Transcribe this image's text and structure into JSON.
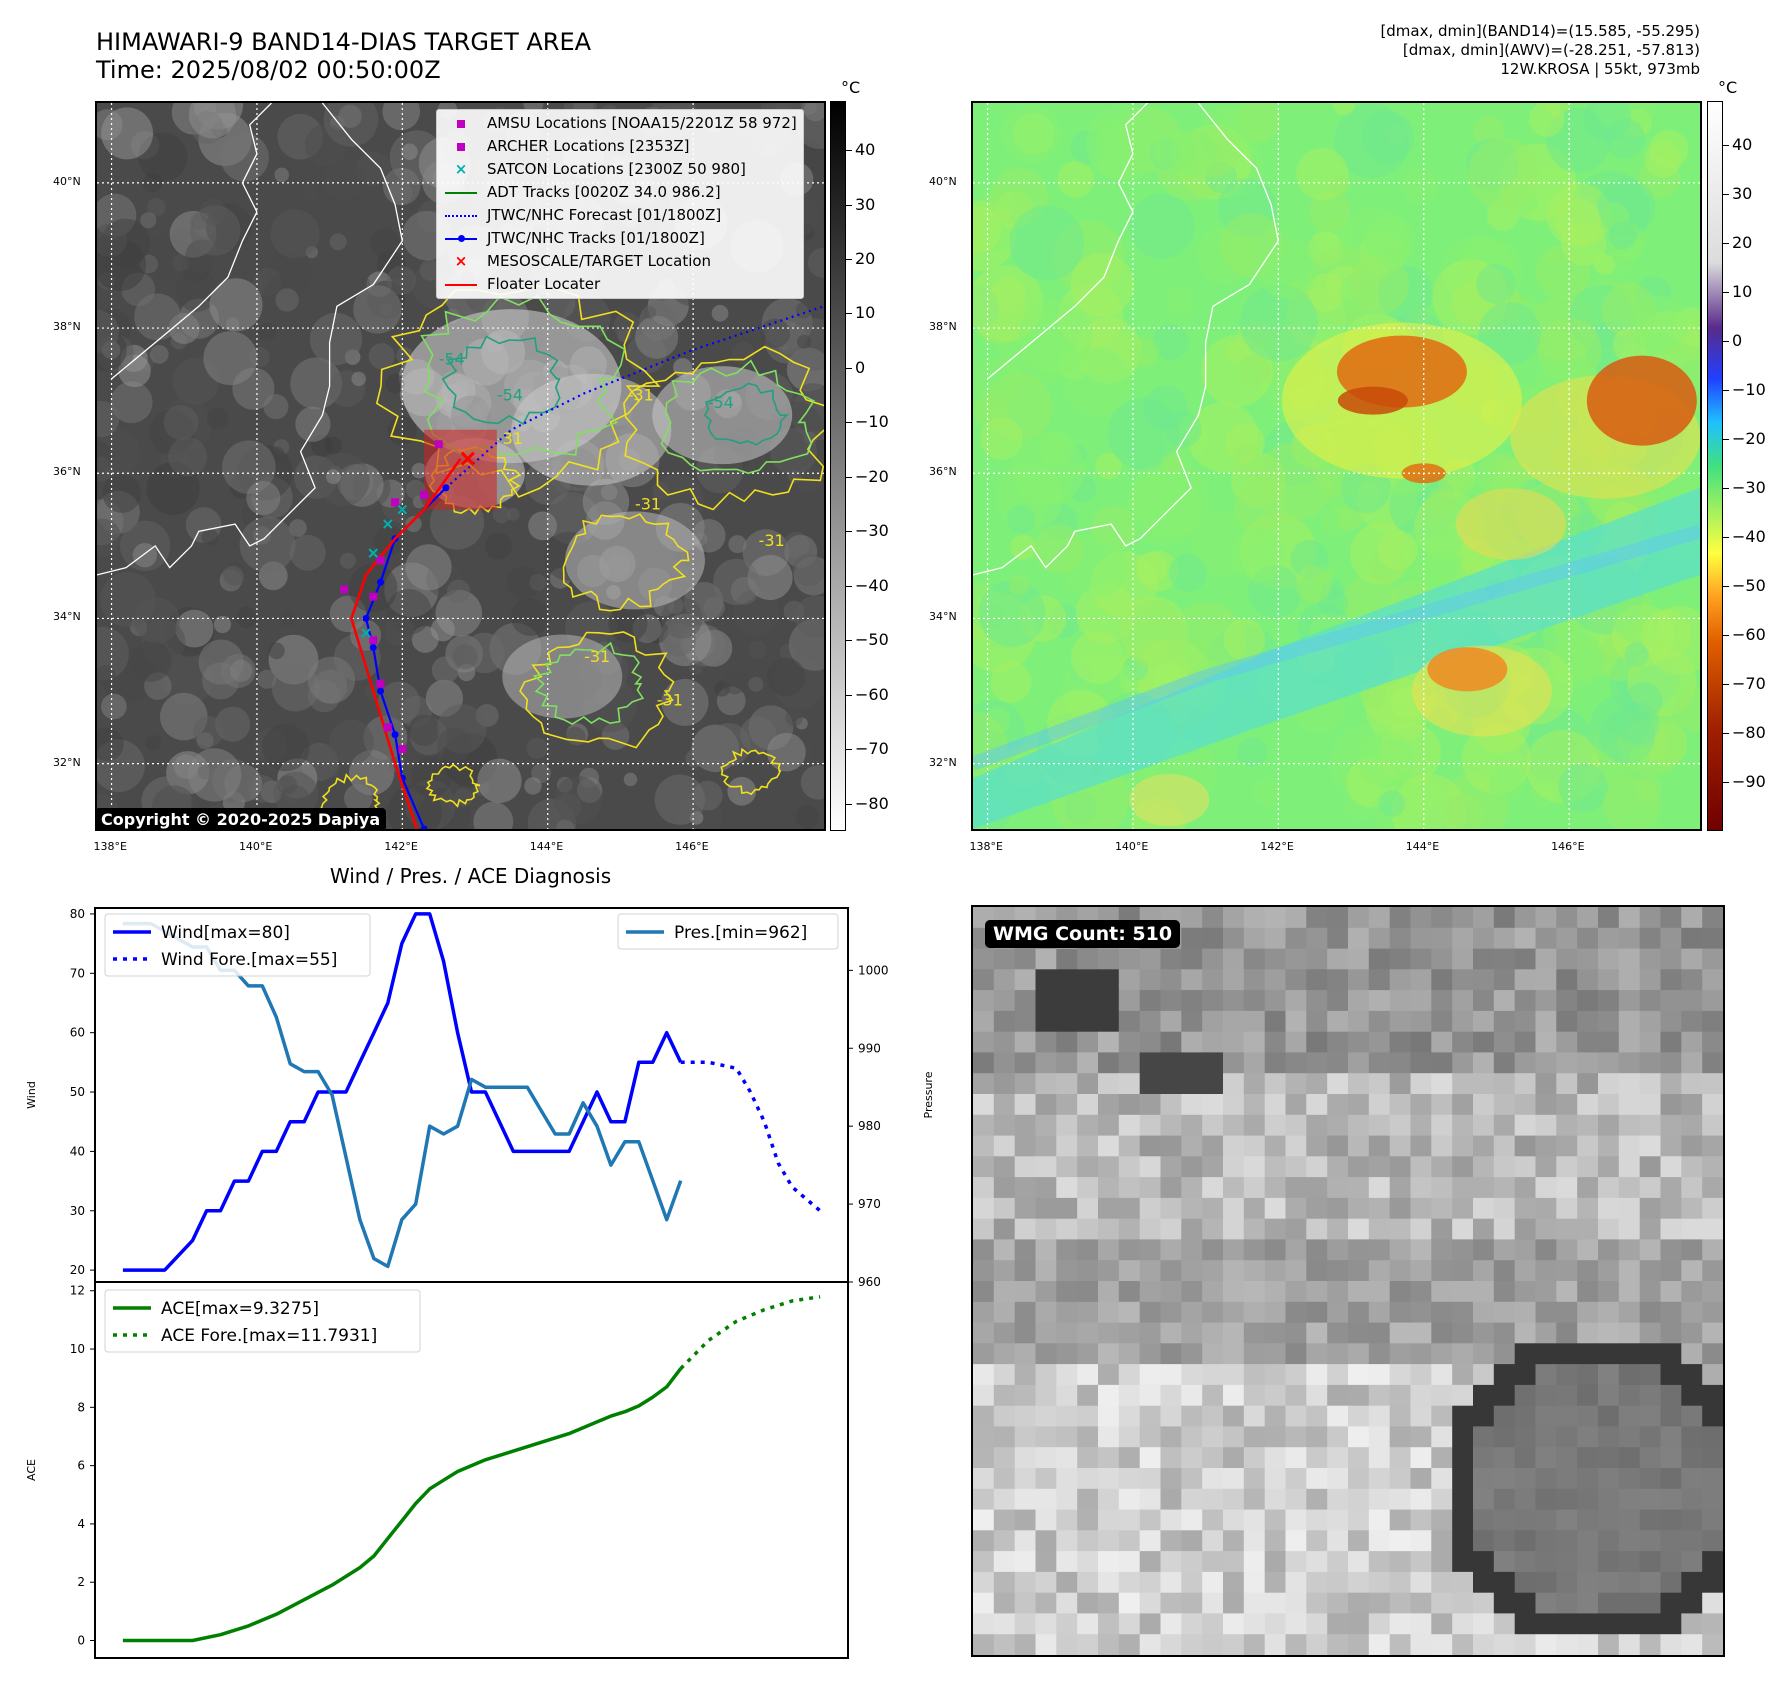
{
  "header": {
    "title_line1": "HIMAWARI-9 BAND14-DIAS TARGET AREA",
    "title_line2": "Time: 2025/08/02 00:50:00Z",
    "info_line1": "[dmax, dmin](BAND14)=(15.585, -55.295)",
    "info_line2": "[dmax, dmin](AWV)=(-28.251, -57.813)",
    "info_line3": "12W.KROSA | 55kt, 973mb"
  },
  "map": {
    "lat_labels": [
      "40°N",
      "38°N",
      "36°N",
      "34°N",
      "32°N"
    ],
    "lon_labels": [
      "138°E",
      "140°E",
      "142°E",
      "144°E",
      "146°E"
    ],
    "lat_values": [
      40,
      38,
      36,
      34,
      32
    ],
    "lon_values": [
      138,
      140,
      142,
      144,
      146
    ],
    "lat_range": [
      31.1,
      41.1
    ],
    "lon_range": [
      137.8,
      147.8
    ],
    "contour_labels": [
      "-54",
      "-54",
      "-54",
      "-31",
      "-31",
      "-31",
      "-31",
      "-31",
      "-31"
    ],
    "copyright": "Copyright © 2020-2025 Dapiya",
    "legend": [
      {
        "label": "AMSU Locations [NOAA15/2201Z 58 972]",
        "symbol": "square",
        "color": "#c000c0"
      },
      {
        "label": "ARCHER Locations [2353Z]",
        "symbol": "square",
        "color": "#c000c0"
      },
      {
        "label": "SATCON Locations [2300Z 50 980]",
        "symbol": "x",
        "color": "#00b0b0"
      },
      {
        "label": "ADT Tracks [0020Z 34.0 986.2]",
        "symbol": "line",
        "color": "#008000"
      },
      {
        "label": "JTWC/NHC Forecast [01/1800Z]",
        "symbol": "dotted",
        "color": "#0000ff"
      },
      {
        "label": "JTWC/NHC Tracks [01/1800Z]",
        "symbol": "line-dot",
        "color": "#0000ff"
      },
      {
        "label": "MESOSCALE/TARGET Location",
        "symbol": "x",
        "color": "#ff0000"
      },
      {
        "label": "Floater Locater",
        "symbol": "line",
        "color": "#ff0000"
      }
    ],
    "track": {
      "jtwc": [
        [
          142.3,
          31.1
        ],
        [
          142.0,
          31.8
        ],
        [
          141.9,
          32.4
        ],
        [
          141.7,
          33.0
        ],
        [
          141.6,
          33.6
        ],
        [
          141.5,
          34.0
        ],
        [
          141.7,
          34.5
        ],
        [
          141.9,
          35.1
        ],
        [
          142.6,
          35.8
        ],
        [
          143.5,
          36.6
        ],
        [
          144.5,
          37.1
        ],
        [
          146.0,
          37.7
        ],
        [
          147.8,
          38.3
        ]
      ],
      "floater": [
        [
          142.2,
          31.1
        ],
        [
          141.9,
          32.0
        ],
        [
          141.6,
          33.0
        ],
        [
          141.3,
          34.0
        ],
        [
          141.5,
          34.6
        ],
        [
          141.9,
          35.1
        ],
        [
          142.3,
          35.5
        ],
        [
          142.8,
          36.2
        ]
      ],
      "target": [
        142.9,
        36.2
      ]
    }
  },
  "colorbar_left": {
    "unit": "°C",
    "labels": [
      "40",
      "30",
      "20",
      "10",
      "0",
      "−10",
      "−20",
      "−30",
      "−40",
      "−50",
      "−60",
      "−70",
      "−80"
    ],
    "values": [
      40,
      30,
      20,
      10,
      0,
      -10,
      -20,
      -30,
      -40,
      -50,
      -60,
      -70,
      -80
    ],
    "range": [
      -85,
      49
    ]
  },
  "colorbar_right": {
    "unit": "°C",
    "labels": [
      "40",
      "30",
      "20",
      "10",
      "0",
      "−10",
      "−20",
      "−30",
      "−40",
      "−50",
      "−60",
      "−70",
      "−80",
      "−90"
    ],
    "values": [
      40,
      30,
      20,
      10,
      0,
      -10,
      -20,
      -30,
      -40,
      -50,
      -60,
      -70,
      -80,
      -90
    ],
    "range": [
      -100,
      49
    ]
  },
  "diagnosis": {
    "title": "Wind / Pres. / ACE Diagnosis",
    "wind_ylabel": "Wind",
    "pres_ylabel": "Pressure",
    "ace_ylabel": "ACE",
    "wind_legend": [
      "Wind[max=80]",
      "Wind Fore.[max=55]"
    ],
    "pres_legend": [
      "Pres.[min=962]"
    ],
    "ace_legend": [
      "ACE[max=9.3275]",
      "ACE Fore.[max=11.7931]"
    ]
  },
  "chart_data": [
    {
      "type": "line",
      "title": "Wind / Pres. / ACE Diagnosis",
      "ylabel": "Wind",
      "ylim": [
        18,
        81
      ],
      "yticks": [
        20,
        30,
        40,
        50,
        60,
        70,
        80
      ],
      "xlim": [
        -2,
        52
      ],
      "series": [
        {
          "name": "Wind[max=80]",
          "color": "#0000ff",
          "style": "solid",
          "x": [
            0,
            3,
            5,
            6,
            7,
            8,
            9,
            10,
            11,
            12,
            13,
            14,
            15,
            16,
            17,
            18,
            19,
            20,
            21,
            22,
            23,
            24,
            25,
            26,
            27,
            28,
            29,
            30,
            31,
            32,
            33,
            34,
            35,
            36,
            37,
            38,
            39,
            40
          ],
          "y": [
            20,
            20,
            25,
            30,
            30,
            35,
            35,
            40,
            40,
            45,
            45,
            50,
            50,
            50,
            55,
            60,
            65,
            75,
            80,
            80,
            72,
            60,
            50,
            50,
            45,
            40,
            40,
            40,
            40,
            40,
            45,
            50,
            45,
            45,
            55,
            55,
            60,
            55
          ]
        },
        {
          "name": "Wind Fore.[max=55]",
          "color": "#0000ff",
          "style": "dotted",
          "x": [
            40,
            42,
            44,
            45,
            46,
            47,
            48,
            50
          ],
          "y": [
            55,
            55,
            54,
            50,
            45,
            38,
            34,
            30
          ]
        }
      ]
    },
    {
      "type": "line",
      "ylabel": "Pressure",
      "ylim": [
        960,
        1008
      ],
      "yticks": [
        960,
        970,
        980,
        990,
        1000
      ],
      "xlim": [
        -2,
        52
      ],
      "series": [
        {
          "name": "Pres.[min=962]",
          "color": "#1f77b4",
          "style": "solid",
          "x": [
            0,
            1,
            2,
            3,
            4,
            5,
            6,
            7,
            8,
            9,
            10,
            11,
            12,
            13,
            14,
            15,
            16,
            17,
            18,
            19,
            20,
            21,
            22,
            23,
            24,
            25,
            26,
            27,
            28,
            29,
            30,
            31,
            32,
            33,
            34,
            35,
            36,
            37,
            38,
            39,
            40
          ],
          "y": [
            1006,
            1006,
            1006,
            1005,
            1004,
            1003,
            1003,
            1000,
            1000,
            998,
            998,
            994,
            988,
            987,
            987,
            984,
            976,
            968,
            963,
            962,
            968,
            970,
            980,
            979,
            980,
            986,
            985,
            985,
            985,
            985,
            982,
            979,
            979,
            983,
            980,
            975,
            978,
            978,
            973,
            968,
            973
          ]
        }
      ]
    },
    {
      "type": "line",
      "ylabel": "ACE",
      "ylim": [
        -0.6,
        12.3
      ],
      "yticks": [
        0,
        2,
        4,
        6,
        8,
        10,
        12
      ],
      "xlim": [
        -2,
        52
      ],
      "series": [
        {
          "name": "ACE[max=9.3275]",
          "color": "#008000",
          "style": "solid",
          "x": [
            0,
            3,
            5,
            7,
            9,
            11,
            13,
            15,
            17,
            18,
            19,
            20,
            21,
            22,
            23,
            24,
            25,
            26,
            27,
            28,
            29,
            30,
            31,
            32,
            33,
            34,
            35,
            36,
            37,
            38,
            39,
            40
          ],
          "y": [
            0,
            0,
            0,
            0.2,
            0.5,
            0.9,
            1.4,
            1.9,
            2.5,
            2.9,
            3.5,
            4.1,
            4.7,
            5.2,
            5.5,
            5.8,
            6.0,
            6.2,
            6.35,
            6.5,
            6.65,
            6.8,
            6.95,
            7.1,
            7.3,
            7.5,
            7.7,
            7.85,
            8.05,
            8.35,
            8.7,
            9.3275
          ]
        },
        {
          "name": "ACE Fore.[max=11.7931]",
          "color": "#008000",
          "style": "dotted",
          "x": [
            40,
            42,
            44,
            46,
            48,
            50
          ],
          "y": [
            9.3275,
            10.3,
            10.95,
            11.35,
            11.65,
            11.7931
          ]
        }
      ]
    }
  ],
  "wmg": {
    "label": "WMG Count: 510"
  }
}
